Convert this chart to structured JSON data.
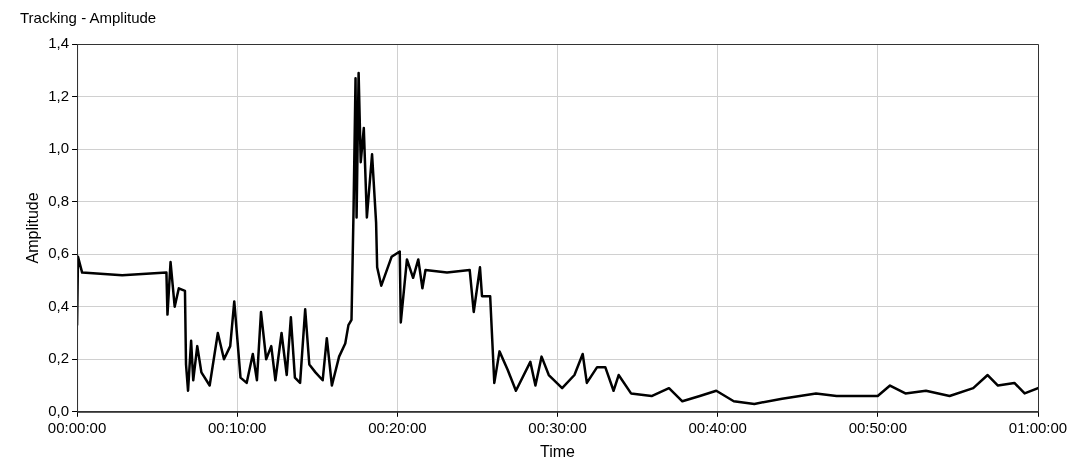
{
  "chart_data": {
    "type": "line",
    "title": "Tracking - Amplitude",
    "xlabel": "Time",
    "ylabel": "Amplitude",
    "x": [
      0,
      0.001,
      0.0053,
      0.047,
      0.093,
      0.0941,
      0.0973,
      0.1016,
      0.1059,
      0.1123,
      0.1134,
      0.1155,
      0.1187,
      0.1209,
      0.1251,
      0.1294,
      0.138,
      0.1465,
      0.1529,
      0.1594,
      0.1636,
      0.1701,
      0.1765,
      0.1829,
      0.1872,
      0.1914,
      0.1968,
      0.2021,
      0.2064,
      0.2128,
      0.2182,
      0.2225,
      0.2267,
      0.2321,
      0.2374,
      0.2417,
      0.2481,
      0.2556,
      0.2599,
      0.2652,
      0.2727,
      0.2791,
      0.2824,
      0.2856,
      0.2877,
      0.2898,
      0.2909,
      0.293,
      0.2952,
      0.2984,
      0.3016,
      0.307,
      0.3112,
      0.3123,
      0.3166,
      0.3273,
      0.3358,
      0.3369,
      0.3433,
      0.3497,
      0.3551,
      0.3594,
      0.3626,
      0.385,
      0.4086,
      0.4128,
      0.4193,
      0.4214,
      0.4299,
      0.4342,
      0.4396,
      0.4481,
      0.4567,
      0.4717,
      0.477,
      0.4834,
      0.4909,
      0.5048,
      0.5176,
      0.5262,
      0.5305,
      0.5412,
      0.5497,
      0.5583,
      0.5636,
      0.5765,
      0.5979,
      0.616,
      0.6299,
      0.6481,
      0.6652,
      0.6834,
      0.7048,
      0.7337,
      0.769,
      0.7904,
      0.8118,
      0.8332,
      0.846,
      0.862,
      0.8834,
      0.908,
      0.9326,
      0.9476,
      0.9583,
      0.9754,
      0.9861,
      1
    ],
    "series": [
      {
        "color": "#000000",
        "values": [
          0.33,
          0.59,
          0.53,
          0.52,
          0.53,
          0.37,
          0.57,
          0.4,
          0.47,
          0.46,
          0.18,
          0.08,
          0.27,
          0.12,
          0.25,
          0.15,
          0.1,
          0.3,
          0.2,
          0.25,
          0.42,
          0.13,
          0.11,
          0.22,
          0.12,
          0.38,
          0.2,
          0.25,
          0.12,
          0.3,
          0.14,
          0.36,
          0.13,
          0.11,
          0.39,
          0.18,
          0.15,
          0.12,
          0.28,
          0.1,
          0.21,
          0.26,
          0.33,
          0.35,
          0.76,
          1.27,
          0.74,
          1.29,
          0.95,
          1.08,
          0.74,
          0.98,
          0.72,
          0.55,
          0.48,
          0.59,
          0.61,
          0.34,
          0.58,
          0.51,
          0.58,
          0.47,
          0.54,
          0.53,
          0.54,
          0.38,
          0.55,
          0.44,
          0.44,
          0.11,
          0.23,
          0.16,
          0.08,
          0.19,
          0.1,
          0.21,
          0.14,
          0.09,
          0.14,
          0.22,
          0.11,
          0.17,
          0.17,
          0.08,
          0.14,
          0.07,
          0.06,
          0.09,
          0.04,
          0.06,
          0.08,
          0.04,
          0.03,
          0.05,
          0.07,
          0.06,
          0.06,
          0.06,
          0.1,
          0.07,
          0.08,
          0.06,
          0.09,
          0.14,
          0.1,
          0.11,
          0.07,
          0.09
        ]
      }
    ],
    "xlim": [
      0,
      1
    ],
    "xticks": [
      {
        "value": 0,
        "label": "00:00:00"
      },
      {
        "value": 0.16667,
        "label": "00:10:00"
      },
      {
        "value": 0.33333,
        "label": "00:20:00"
      },
      {
        "value": 0.5,
        "label": "00:30:00"
      },
      {
        "value": 0.66667,
        "label": "00:40:00"
      },
      {
        "value": 0.83333,
        "label": "00:50:00"
      },
      {
        "value": 1,
        "label": "01:00:00"
      }
    ],
    "ylim": [
      0,
      1.4
    ],
    "yticks": [
      {
        "value": 0,
        "label": "0,0"
      },
      {
        "value": 0.2,
        "label": "0,2"
      },
      {
        "value": 0.4,
        "label": "0,4"
      },
      {
        "value": 0.6,
        "label": "0,6"
      },
      {
        "value": 0.8,
        "label": "0,8"
      },
      {
        "value": 1,
        "label": "1,0"
      },
      {
        "value": 1.2,
        "label": "1,2"
      },
      {
        "value": 1.4,
        "label": "1,4"
      }
    ],
    "grid": true,
    "legend": false,
    "marker": "none",
    "line_style": "solid"
  }
}
